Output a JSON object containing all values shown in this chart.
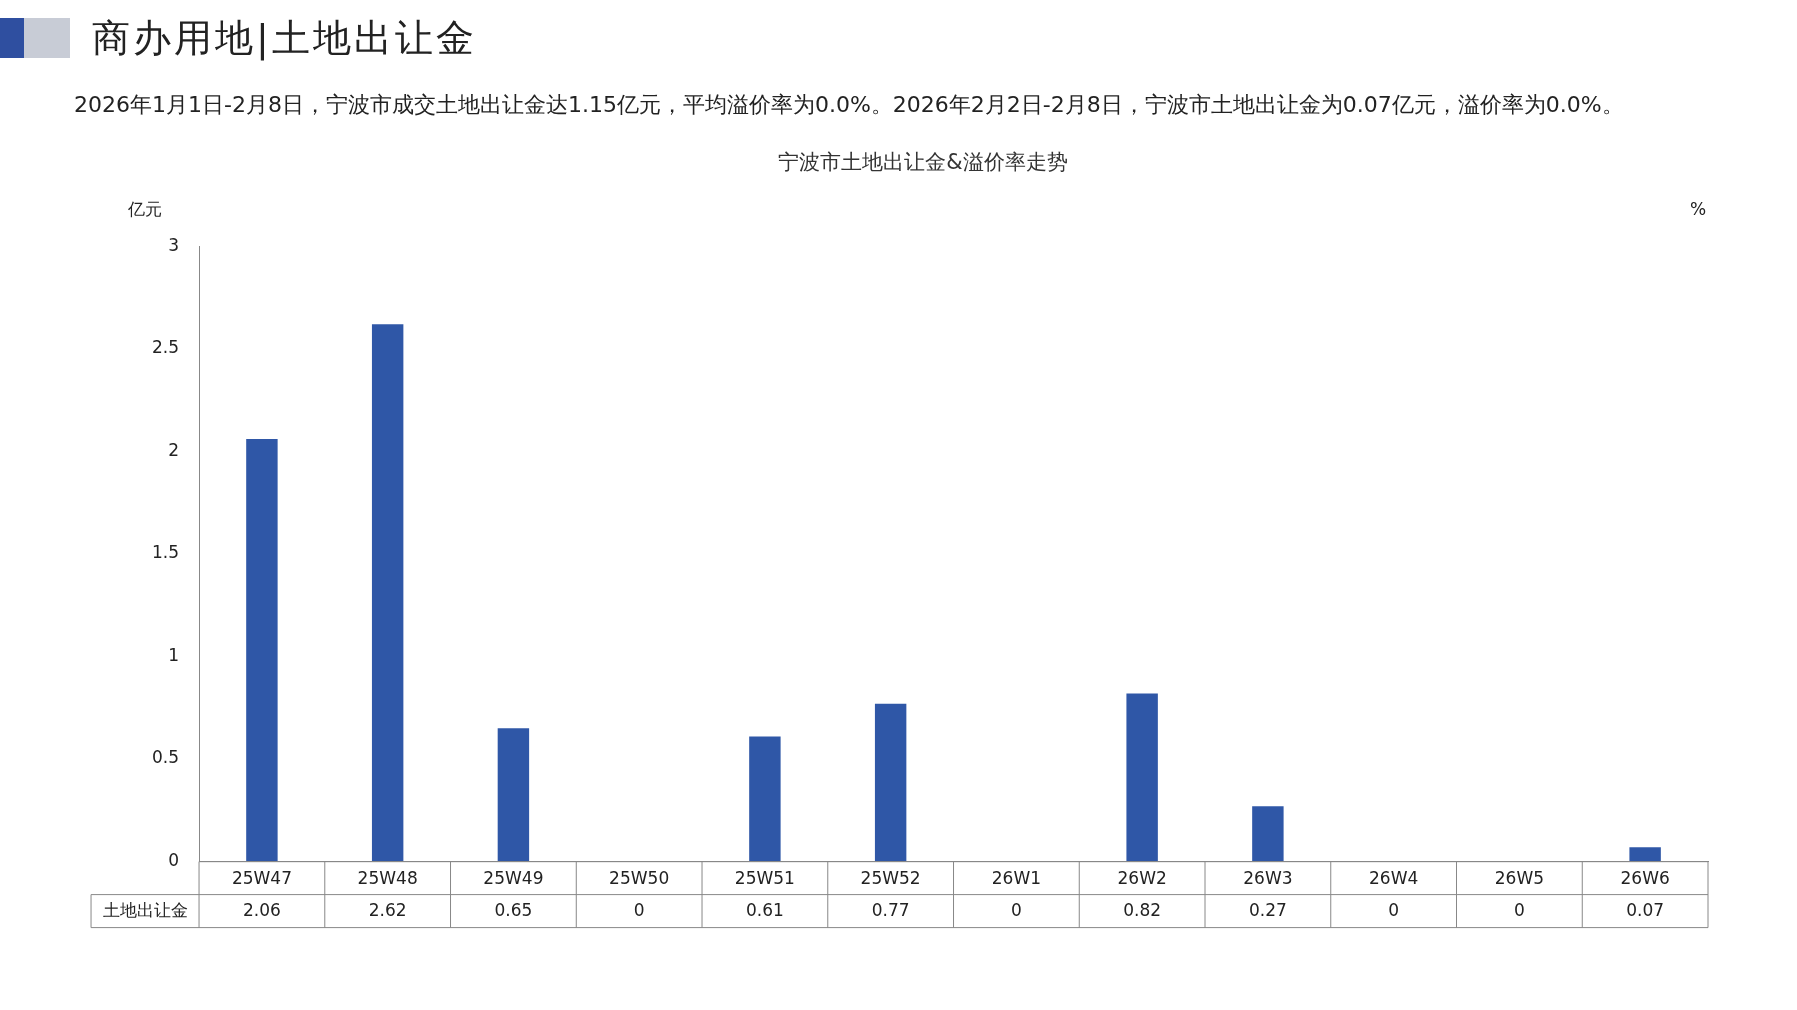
{
  "chart_data": {
    "type": "bar",
    "title": "宁波市土地出让金&溢价率走势",
    "subtitle": "2026年1月1日-2月8日，宁波市成交土地出让金达1.15亿元，平均溢价率为0.0%。2026年2月2日-2月8日，宁波市土地出让金为0.07亿元，溢价率为0.0%。",
    "annotations": [
      "商办用地|土地出让金"
    ],
    "ylabel": "亿元",
    "y2label": "%",
    "categories": [
      "25W47",
      "25W48",
      "25W49",
      "25W50",
      "25W51",
      "25W52",
      "26W1",
      "26W2",
      "26W3",
      "26W4",
      "26W5",
      "26W6"
    ],
    "series": [
      {
        "name": "土地出让金",
        "color": "#2f57a7",
        "values": [
          2.06,
          2.62,
          0.65,
          0,
          0.61,
          0.77,
          0,
          0.82,
          0.27,
          0,
          0,
          0.07
        ]
      }
    ],
    "ylim": [
      0,
      3
    ],
    "yticks": [
      0,
      0.5,
      1,
      1.5,
      2,
      2.5,
      3
    ],
    "grid": false,
    "legend": false,
    "data_labels": true
  }
}
